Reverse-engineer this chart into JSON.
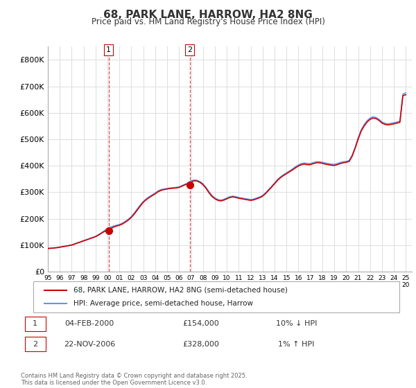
{
  "title": "68, PARK LANE, HARROW, HA2 8NG",
  "subtitle": "Price paid vs. HM Land Registry's House Price Index (HPI)",
  "hpi_color": "#6495ED",
  "price_color": "#CC0000",
  "marker_color": "#CC0000",
  "annotation_color": "#CC0000",
  "grid_color": "#DDDDDD",
  "bg_color": "#FFFFFF",
  "ylim": [
    0,
    850000
  ],
  "yticks": [
    0,
    100000,
    200000,
    300000,
    400000,
    500000,
    600000,
    700000,
    800000
  ],
  "ytick_labels": [
    "£0",
    "£100K",
    "£200K",
    "£300K",
    "£400K",
    "£500K",
    "£600K",
    "£700K",
    "£800K"
  ],
  "purchase1_date": 2000.09,
  "purchase1_price": 154000,
  "purchase1_label": "1",
  "purchase2_date": 2006.9,
  "purchase2_price": 328000,
  "purchase2_label": "2",
  "legend_line1": "68, PARK LANE, HARROW, HA2 8NG (semi-detached house)",
  "legend_line2": "HPI: Average price, semi-detached house, Harrow",
  "table_row1_num": "1",
  "table_row1_date": "04-FEB-2000",
  "table_row1_price": "£154,000",
  "table_row1_hpi": "10% ↓ HPI",
  "table_row2_num": "2",
  "table_row2_date": "22-NOV-2006",
  "table_row2_price": "£328,000",
  "table_row2_hpi": "1% ↑ HPI",
  "footer": "Contains HM Land Registry data © Crown copyright and database right 2025.\nThis data is licensed under the Open Government Licence v3.0.",
  "hpi_x": [
    1995.0,
    1995.25,
    1995.5,
    1995.75,
    1996.0,
    1996.25,
    1996.5,
    1996.75,
    1997.0,
    1997.25,
    1997.5,
    1997.75,
    1998.0,
    1998.25,
    1998.5,
    1998.75,
    1999.0,
    1999.25,
    1999.5,
    1999.75,
    2000.0,
    2000.25,
    2000.5,
    2000.75,
    2001.0,
    2001.25,
    2001.5,
    2001.75,
    2002.0,
    2002.25,
    2002.5,
    2002.75,
    2003.0,
    2003.25,
    2003.5,
    2003.75,
    2004.0,
    2004.25,
    2004.5,
    2004.75,
    2005.0,
    2005.25,
    2005.5,
    2005.75,
    2006.0,
    2006.25,
    2006.5,
    2006.75,
    2007.0,
    2007.25,
    2007.5,
    2007.75,
    2008.0,
    2008.25,
    2008.5,
    2008.75,
    2009.0,
    2009.25,
    2009.5,
    2009.75,
    2010.0,
    2010.25,
    2010.5,
    2010.75,
    2011.0,
    2011.25,
    2011.5,
    2011.75,
    2012.0,
    2012.25,
    2012.5,
    2012.75,
    2013.0,
    2013.25,
    2013.5,
    2013.75,
    2014.0,
    2014.25,
    2014.5,
    2014.75,
    2015.0,
    2015.25,
    2015.5,
    2015.75,
    2016.0,
    2016.25,
    2016.5,
    2016.75,
    2017.0,
    2017.25,
    2017.5,
    2017.75,
    2018.0,
    2018.25,
    2018.5,
    2018.75,
    2019.0,
    2019.25,
    2019.5,
    2019.75,
    2020.0,
    2020.25,
    2020.5,
    2020.75,
    2021.0,
    2021.25,
    2021.5,
    2021.75,
    2022.0,
    2022.25,
    2022.5,
    2022.75,
    2023.0,
    2023.25,
    2023.5,
    2023.75,
    2024.0,
    2024.25,
    2024.5,
    2024.75,
    2025.0
  ],
  "hpi_y": [
    88000,
    89000,
    90000,
    91000,
    93000,
    95000,
    97000,
    99000,
    101000,
    105000,
    109000,
    113000,
    117000,
    121000,
    125000,
    129000,
    133000,
    140000,
    147000,
    155000,
    163000,
    168000,
    172000,
    175000,
    178000,
    183000,
    190000,
    198000,
    208000,
    222000,
    237000,
    252000,
    265000,
    275000,
    283000,
    290000,
    297000,
    305000,
    310000,
    312000,
    314000,
    316000,
    317000,
    318000,
    320000,
    325000,
    330000,
    336000,
    343000,
    346000,
    345000,
    340000,
    332000,
    318000,
    302000,
    288000,
    278000,
    272000,
    270000,
    273000,
    278000,
    283000,
    285000,
    283000,
    280000,
    278000,
    276000,
    274000,
    272000,
    274000,
    278000,
    282000,
    288000,
    298000,
    310000,
    322000,
    335000,
    348000,
    358000,
    366000,
    373000,
    380000,
    388000,
    396000,
    403000,
    408000,
    410000,
    408000,
    408000,
    412000,
    415000,
    415000,
    413000,
    410000,
    408000,
    406000,
    405000,
    408000,
    412000,
    415000,
    416000,
    420000,
    440000,
    470000,
    505000,
    535000,
    555000,
    570000,
    580000,
    585000,
    582000,
    575000,
    565000,
    560000,
    558000,
    560000,
    562000,
    565000,
    568000,
    670000,
    675000
  ],
  "price_x": [
    1995.0,
    1995.25,
    1995.5,
    1995.75,
    1996.0,
    1996.25,
    1996.5,
    1996.75,
    1997.0,
    1997.25,
    1997.5,
    1997.75,
    1998.0,
    1998.25,
    1998.5,
    1998.75,
    1999.0,
    1999.25,
    1999.5,
    1999.75,
    2000.0,
    2000.25,
    2000.5,
    2000.75,
    2001.0,
    2001.25,
    2001.5,
    2001.75,
    2002.0,
    2002.25,
    2002.5,
    2002.75,
    2003.0,
    2003.25,
    2003.5,
    2003.75,
    2004.0,
    2004.25,
    2004.5,
    2004.75,
    2005.0,
    2005.25,
    2005.5,
    2005.75,
    2006.0,
    2006.25,
    2006.5,
    2006.75,
    2007.0,
    2007.25,
    2007.5,
    2007.75,
    2008.0,
    2008.25,
    2008.5,
    2008.75,
    2009.0,
    2009.25,
    2009.5,
    2009.75,
    2010.0,
    2010.25,
    2010.5,
    2010.75,
    2011.0,
    2011.25,
    2011.5,
    2011.75,
    2012.0,
    2012.25,
    2012.5,
    2012.75,
    2013.0,
    2013.25,
    2013.5,
    2013.75,
    2014.0,
    2014.25,
    2014.5,
    2014.75,
    2015.0,
    2015.25,
    2015.5,
    2015.75,
    2016.0,
    2016.25,
    2016.5,
    2016.75,
    2017.0,
    2017.25,
    2017.5,
    2017.75,
    2018.0,
    2018.25,
    2018.5,
    2018.75,
    2019.0,
    2019.25,
    2019.5,
    2019.75,
    2020.0,
    2020.25,
    2020.5,
    2020.75,
    2021.0,
    2021.25,
    2021.5,
    2021.75,
    2022.0,
    2022.25,
    2022.5,
    2022.75,
    2023.0,
    2023.25,
    2023.5,
    2023.75,
    2024.0,
    2024.25,
    2024.5,
    2024.75,
    2025.0
  ],
  "price_y": [
    87000,
    88000,
    89000,
    90000,
    92000,
    94000,
    96000,
    98000,
    100000,
    104000,
    108000,
    112000,
    116000,
    120000,
    124000,
    128000,
    132000,
    138000,
    145000,
    152000,
    154000,
    162000,
    168000,
    172000,
    175000,
    180000,
    187000,
    195000,
    205000,
    218000,
    233000,
    248000,
    262000,
    272000,
    280000,
    287000,
    294000,
    302000,
    307000,
    310000,
    312000,
    314000,
    315000,
    316000,
    318000,
    323000,
    328000,
    330000,
    338000,
    343000,
    342000,
    337000,
    328000,
    315000,
    298000,
    284000,
    275000,
    269000,
    267000,
    270000,
    275000,
    280000,
    282000,
    280000,
    277000,
    275000,
    273000,
    271000,
    269000,
    271000,
    275000,
    279000,
    285000,
    295000,
    307000,
    319000,
    332000,
    345000,
    355000,
    363000,
    370000,
    377000,
    384000,
    392000,
    399000,
    404000,
    406000,
    404000,
    404000,
    408000,
    411000,
    411000,
    409000,
    406000,
    404000,
    402000,
    401000,
    404000,
    408000,
    411000,
    413000,
    416000,
    436000,
    466000,
    500000,
    530000,
    550000,
    565000,
    575000,
    580000,
    578000,
    571000,
    561000,
    556000,
    554000,
    556000,
    558000,
    561000,
    564000,
    665000,
    668000
  ]
}
